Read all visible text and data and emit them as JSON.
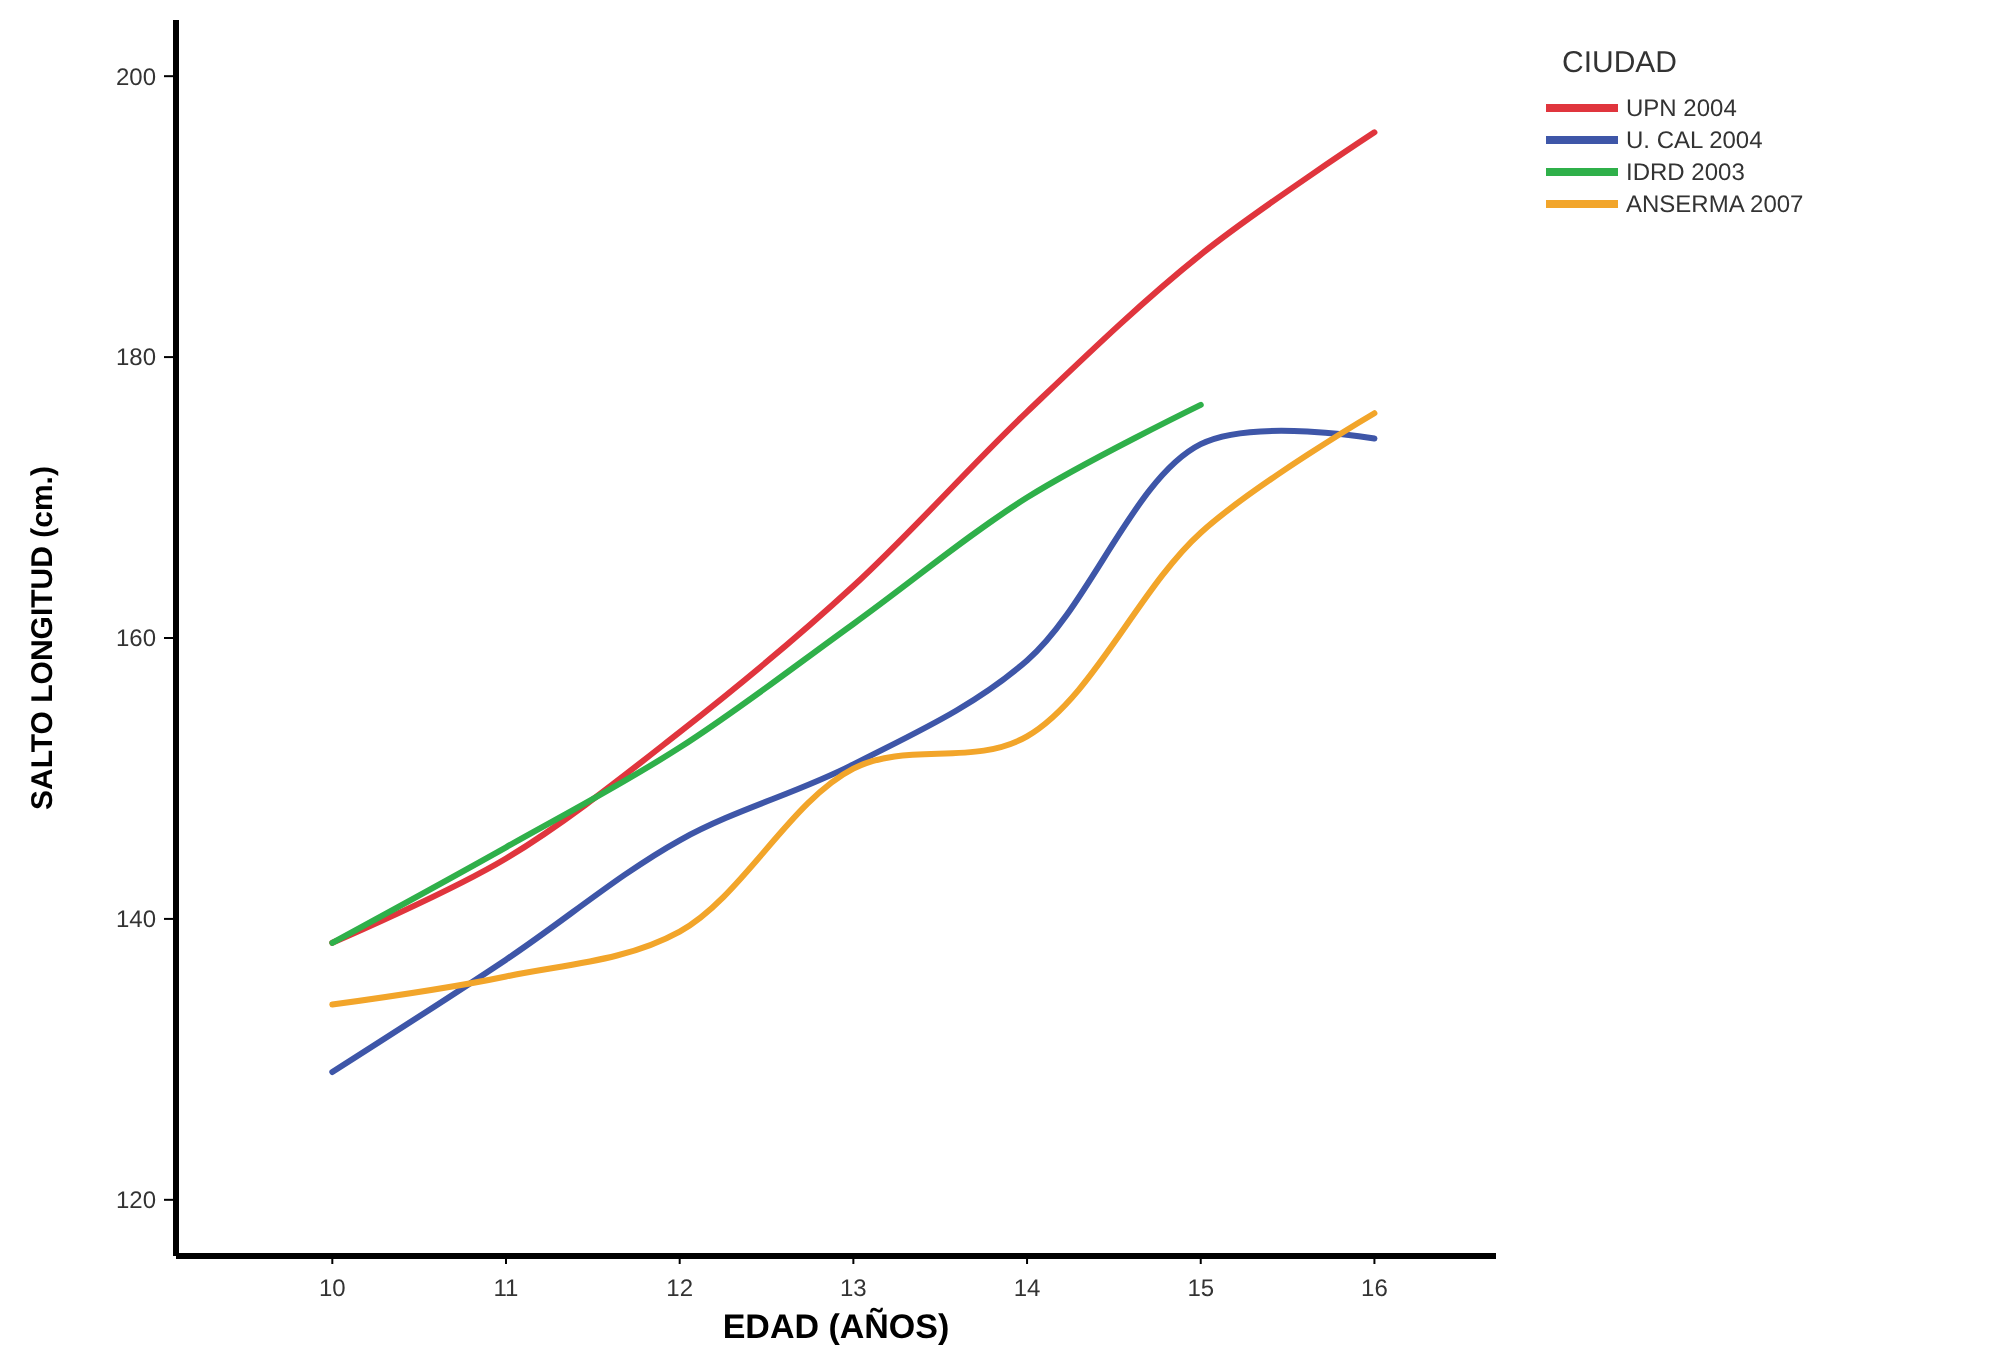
{
  "chart_data": {
    "type": "line",
    "xlabel": "EDAD (AÑOS)",
    "ylabel": "SALTO LONGITUD (cm.)",
    "legend_title": "CIUDAD",
    "legend": "top right",
    "grid": false,
    "marker": "none",
    "line_style": "solid",
    "x": [
      10,
      11,
      12,
      13,
      14,
      15,
      16
    ],
    "xlim": [
      9.1,
      16.7
    ],
    "xticks": [
      10,
      11,
      12,
      13,
      14,
      15,
      16
    ],
    "ylim": [
      116,
      204
    ],
    "yticks": [
      120,
      140,
      160,
      180,
      200
    ],
    "series": [
      {
        "name": "UPN 2004",
        "color": "#e0353d",
        "values": [
          138.3,
          144.3,
          153.3,
          163.7,
          176.1,
          187.3,
          196
        ]
      },
      {
        "name": "U. CAL 2004",
        "color": "#3e56a8",
        "values": [
          129.1,
          137.1,
          145.6,
          151,
          158.4,
          173.8,
          174.2
        ]
      },
      {
        "name": "IDRD 2003",
        "color": "#2fb04a",
        "values": [
          138.3,
          145.1,
          152.2,
          161,
          170,
          176.6,
          null
        ]
      },
      {
        "name": "ANSERMA 2007",
        "color": "#f2a52a",
        "values": [
          133.9,
          135.9,
          139.1,
          150.7,
          153,
          167.5,
          176
        ]
      }
    ]
  }
}
